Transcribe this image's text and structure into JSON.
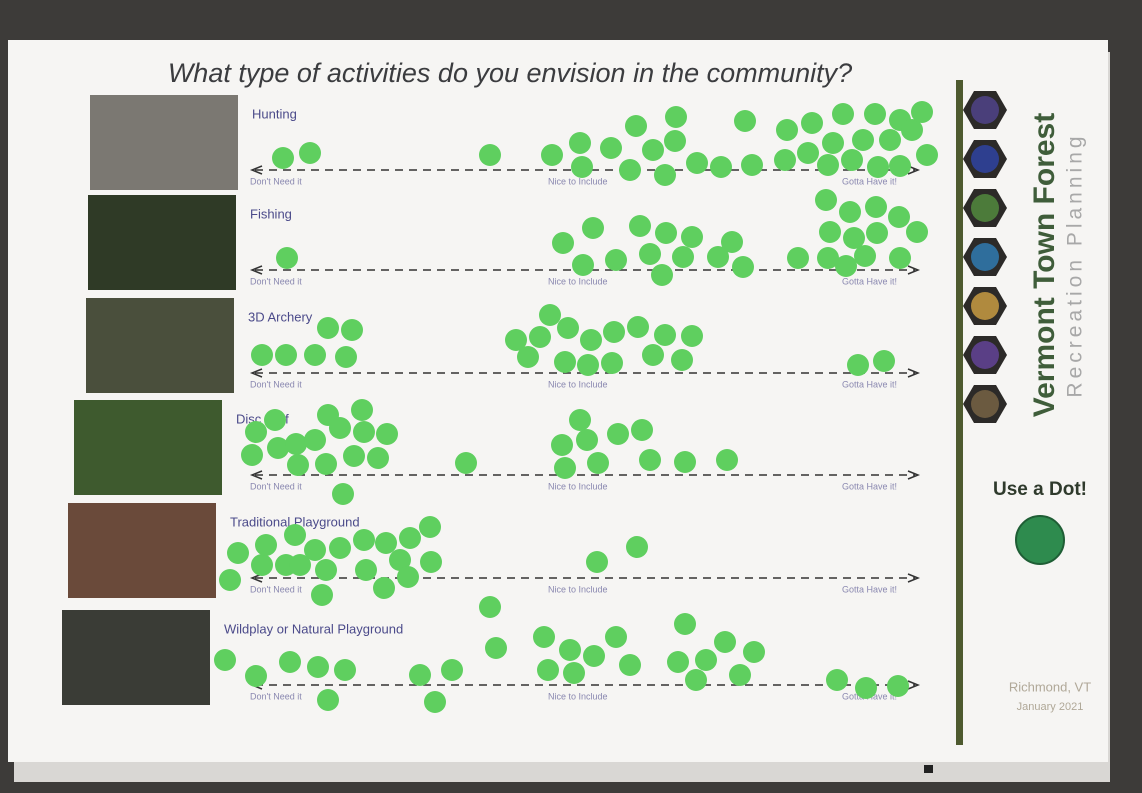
{
  "header": {
    "title": "What type of activities do you envision in the community?"
  },
  "scale": [
    "Don't Need it",
    "Nice to Include",
    "Gotta Have it!"
  ],
  "rows": [
    {
      "label": "Hunting"
    },
    {
      "label": "Fishing"
    },
    {
      "label": "3D Archery"
    },
    {
      "label": "Disc Golf"
    },
    {
      "label": "Traditional Playground"
    },
    {
      "label": "Wildplay or Natural Playground"
    }
  ],
  "sidebar": {
    "title": "Vermont Town Forest",
    "subtitle": "Recreation Planning",
    "instruction": "Use a Dot!",
    "location": "Richmond, VT",
    "date": "January 2021"
  }
}
